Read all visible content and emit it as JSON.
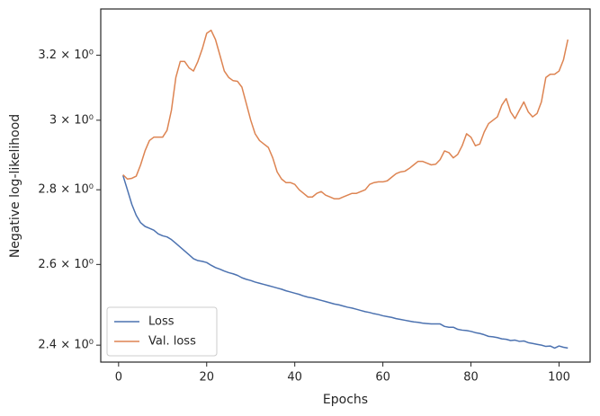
{
  "chart_data": {
    "type": "line",
    "x_label": "Epochs",
    "y_label": "Negative log-likelihood",
    "yscale": "log",
    "xlim": [
      -4.05,
      107.05
    ],
    "ylim": [
      2.36,
      3.35
    ],
    "xticks": [
      0,
      20,
      40,
      60,
      80,
      100
    ],
    "yticks": [
      {
        "value": 2.4,
        "label": "2.4 × 10⁰"
      },
      {
        "value": 2.6,
        "label": "2.6 × 10⁰"
      },
      {
        "value": 2.8,
        "label": "2.8 × 10⁰"
      },
      {
        "value": 3.0,
        "label": "3 × 10⁰"
      },
      {
        "value": 3.2,
        "label": "3.2 × 10⁰"
      }
    ],
    "grid": false,
    "legend": "lower left",
    "x": [
      1,
      2,
      3,
      4,
      5,
      6,
      7,
      8,
      9,
      10,
      11,
      12,
      13,
      14,
      15,
      16,
      17,
      18,
      19,
      20,
      21,
      22,
      23,
      24,
      25,
      26,
      27,
      28,
      29,
      30,
      31,
      32,
      33,
      34,
      35,
      36,
      37,
      38,
      39,
      40,
      41,
      42,
      43,
      44,
      45,
      46,
      47,
      48,
      49,
      50,
      51,
      52,
      53,
      54,
      55,
      56,
      57,
      58,
      59,
      60,
      61,
      62,
      63,
      64,
      65,
      66,
      67,
      68,
      69,
      70,
      71,
      72,
      73,
      74,
      75,
      76,
      77,
      78,
      79,
      80,
      81,
      82,
      83,
      84,
      85,
      86,
      87,
      88,
      89,
      90,
      91,
      92,
      93,
      94,
      95,
      96,
      97,
      98,
      99,
      100,
      101,
      102
    ],
    "series": [
      {
        "name": "Loss",
        "color": "#4c72b0",
        "values": [
          2.84,
          2.8,
          2.76,
          2.73,
          2.71,
          2.7,
          2.695,
          2.69,
          2.68,
          2.675,
          2.672,
          2.665,
          2.655,
          2.645,
          2.635,
          2.625,
          2.615,
          2.61,
          2.608,
          2.605,
          2.598,
          2.592,
          2.588,
          2.583,
          2.579,
          2.576,
          2.572,
          2.566,
          2.562,
          2.559,
          2.555,
          2.552,
          2.549,
          2.546,
          2.543,
          2.54,
          2.537,
          2.533,
          2.53,
          2.527,
          2.524,
          2.52,
          2.517,
          2.515,
          2.512,
          2.509,
          2.506,
          2.503,
          2.5,
          2.498,
          2.495,
          2.492,
          2.49,
          2.487,
          2.484,
          2.481,
          2.479,
          2.476,
          2.474,
          2.471,
          2.469,
          2.467,
          2.464,
          2.462,
          2.46,
          2.458,
          2.456,
          2.455,
          2.453,
          2.452,
          2.451,
          2.451,
          2.451,
          2.445,
          2.443,
          2.443,
          2.438,
          2.436,
          2.435,
          2.433,
          2.43,
          2.428,
          2.425,
          2.421,
          2.42,
          2.418,
          2.415,
          2.414,
          2.411,
          2.412,
          2.409,
          2.41,
          2.406,
          2.404,
          2.402,
          2.4,
          2.397,
          2.398,
          2.393,
          2.398,
          2.395,
          2.393
        ]
      },
      {
        "name": "Val. loss",
        "color": "#dd8452",
        "values": [
          2.842,
          2.83,
          2.832,
          2.838,
          2.87,
          2.91,
          2.94,
          2.95,
          2.95,
          2.95,
          2.97,
          3.03,
          3.13,
          3.18,
          3.18,
          3.16,
          3.15,
          3.18,
          3.22,
          3.27,
          3.28,
          3.25,
          3.2,
          3.15,
          3.13,
          3.12,
          3.118,
          3.1,
          3.05,
          3.0,
          2.96,
          2.94,
          2.93,
          2.92,
          2.89,
          2.85,
          2.83,
          2.82,
          2.82,
          2.815,
          2.8,
          2.79,
          2.78,
          2.78,
          2.79,
          2.795,
          2.785,
          2.78,
          2.775,
          2.775,
          2.78,
          2.785,
          2.79,
          2.79,
          2.795,
          2.8,
          2.815,
          2.82,
          2.822,
          2.822,
          2.825,
          2.835,
          2.845,
          2.85,
          2.852,
          2.86,
          2.87,
          2.88,
          2.88,
          2.875,
          2.87,
          2.872,
          2.885,
          2.91,
          2.905,
          2.89,
          2.9,
          2.925,
          2.96,
          2.95,
          2.925,
          2.93,
          2.965,
          2.99,
          3.0,
          3.01,
          3.045,
          3.065,
          3.025,
          3.005,
          3.03,
          3.055,
          3.025,
          3.01,
          3.02,
          3.055,
          3.13,
          3.14,
          3.14,
          3.15,
          3.185,
          3.25
        ]
      }
    ]
  }
}
